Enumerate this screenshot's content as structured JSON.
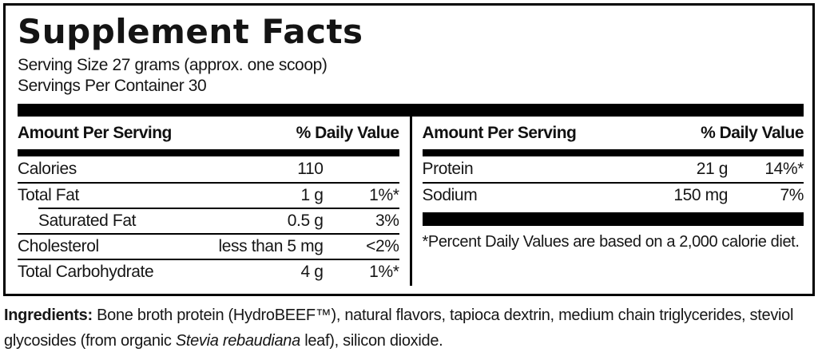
{
  "label": {
    "title": "Supplement Facts",
    "serving_size": "Serving Size 27 grams (approx. one scoop)",
    "servings_per_container": "Servings Per Container 30",
    "left_column": {
      "header_amount": "Amount Per Serving",
      "header_dv": "% Daily Value",
      "rows": [
        {
          "name": "Calories",
          "amount": "110",
          "dv": ""
        },
        {
          "name": "Total Fat",
          "amount": "1 g",
          "dv": "1%*"
        },
        {
          "name": "Saturated Fat",
          "amount": "0.5 g",
          "dv": "3%"
        },
        {
          "name": "Cholesterol",
          "amount": "less than 5 mg",
          "dv": "<2%"
        },
        {
          "name": "Total Carbohydrate",
          "amount": "4 g",
          "dv": "1%*"
        }
      ]
    },
    "right_column": {
      "header_amount": "Amount Per Serving",
      "header_dv": "% Daily Value",
      "rows": [
        {
          "name": "Protein",
          "amount": "21 g",
          "dv": "14%*"
        },
        {
          "name": "Sodium",
          "amount": "150 mg",
          "dv": "7%"
        }
      ],
      "footnote": "*Percent Daily Values are based on a 2,000 calorie diet."
    }
  },
  "ingredients": {
    "heading": "Ingredients:",
    "part1": " Bone broth protein (HydroBEEF™), natural flavors, tapioca dextrin, medium chain triglycerides, steviol glycosides (from organic ",
    "italic_species": "Stevia rebaudiana",
    "part2": " leaf), silicon dioxide."
  },
  "colors": {
    "text": "#111111",
    "background": "#ffffff",
    "rule": "#000000"
  }
}
